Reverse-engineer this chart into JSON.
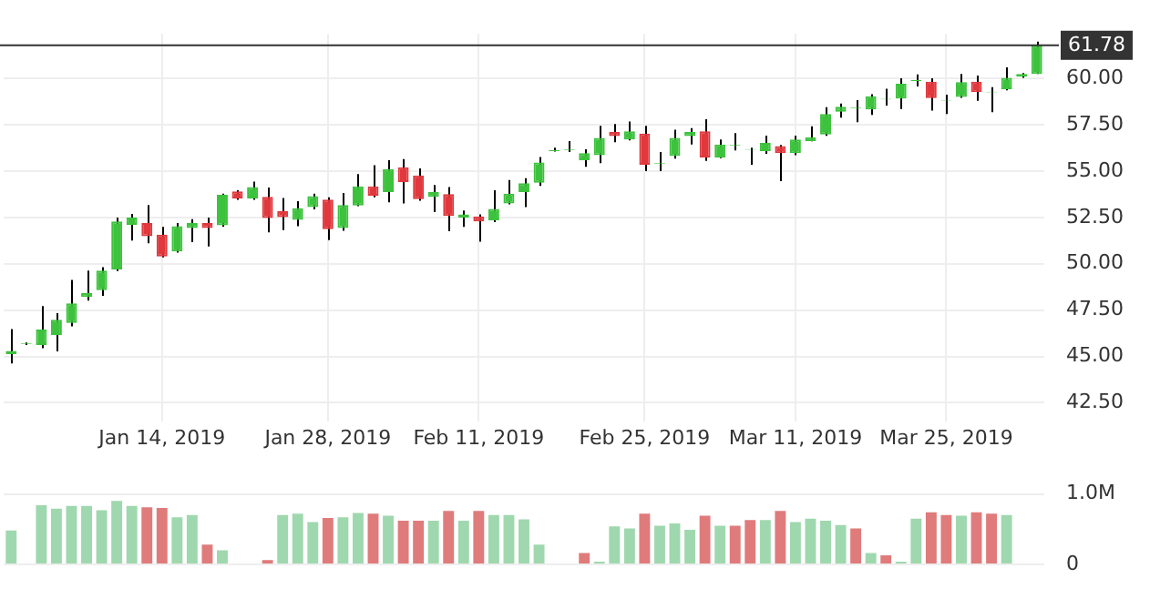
{
  "chart_data": [
    {
      "type": "candlestick",
      "categories": [
        null,
        null,
        null,
        null,
        null,
        null,
        null,
        null,
        null,
        null,
        "Jan 14, 2019",
        null,
        null,
        null,
        null,
        null,
        null,
        null,
        null,
        null,
        null,
        "Jan 28, 2019",
        null,
        null,
        null,
        null,
        null,
        null,
        null,
        null,
        null,
        "Feb 11, 2019",
        null,
        null,
        null,
        null,
        null,
        null,
        null,
        null,
        null,
        null,
        "Feb 25, 2019",
        null,
        null,
        null,
        null,
        null,
        null,
        null,
        null,
        null,
        "Mar 11, 2019",
        null,
        null,
        null,
        null,
        null,
        null,
        null,
        null,
        null,
        "Mar 25, 2019",
        null,
        null,
        null,
        null,
        null,
        null
      ],
      "ohlc": [
        [
          45.12,
          46.48,
          44.62,
          45.3
        ],
        [
          45.68,
          45.75,
          45.62,
          45.72
        ],
        [
          45.62,
          47.71,
          45.44,
          46.45
        ],
        [
          46.15,
          47.33,
          45.27,
          46.98
        ],
        [
          46.8,
          49.13,
          46.62,
          47.86
        ],
        [
          48.21,
          49.63,
          48.01,
          48.42
        ],
        [
          48.57,
          49.81,
          48.27,
          49.63
        ],
        [
          49.69,
          52.49,
          49.6,
          52.28
        ],
        [
          52.1,
          52.69,
          51.25,
          52.49
        ],
        [
          52.19,
          53.16,
          51.1,
          51.48
        ],
        [
          51.57,
          51.99,
          50.34,
          50.39
        ],
        [
          50.66,
          52.19,
          50.6,
          52.02
        ],
        [
          51.93,
          52.4,
          51.16,
          52.19
        ],
        [
          52.19,
          52.49,
          50.93,
          51.93
        ],
        [
          52.07,
          53.78,
          52.0,
          53.72
        ],
        [
          53.9,
          53.96,
          53.45,
          53.52
        ],
        [
          53.52,
          54.43,
          53.45,
          54.14
        ],
        [
          53.61,
          54.11,
          51.69,
          52.46
        ],
        [
          52.84,
          53.55,
          51.81,
          52.52
        ],
        [
          52.37,
          53.37,
          52.02,
          52.99
        ],
        [
          53.05,
          53.78,
          52.93,
          53.64
        ],
        [
          53.46,
          53.58,
          51.28,
          51.87
        ],
        [
          51.93,
          53.81,
          51.78,
          53.16
        ],
        [
          53.14,
          54.84,
          53.1,
          54.17
        ],
        [
          54.17,
          55.32,
          53.58,
          53.67
        ],
        [
          53.87,
          55.58,
          53.31,
          55.11
        ],
        [
          55.2,
          55.64,
          53.25,
          54.4
        ],
        [
          54.76,
          55.14,
          53.4,
          53.49
        ],
        [
          53.61,
          54.25,
          52.78,
          53.87
        ],
        [
          53.75,
          54.14,
          51.75,
          52.58
        ],
        [
          52.49,
          52.87,
          51.99,
          52.66
        ],
        [
          52.55,
          52.66,
          51.19,
          52.28
        ],
        [
          52.34,
          53.96,
          52.25,
          52.96
        ],
        [
          53.25,
          54.52,
          53.2,
          53.78
        ],
        [
          53.87,
          54.61,
          53.05,
          54.34
        ],
        [
          54.37,
          55.76,
          54.2,
          55.46
        ],
        [
          56.08,
          56.26,
          56.05,
          56.14
        ],
        [
          56.12,
          56.61,
          56.02,
          56.16
        ],
        [
          55.58,
          56.17,
          55.23,
          55.96
        ],
        [
          55.85,
          57.44,
          55.43,
          56.79
        ],
        [
          57.11,
          57.53,
          56.55,
          56.88
        ],
        [
          56.7,
          57.67,
          56.65,
          57.14
        ],
        [
          57.02,
          57.44,
          54.99,
          55.34
        ],
        [
          55.38,
          56.02,
          54.99,
          55.42
        ],
        [
          55.82,
          57.23,
          55.67,
          56.79
        ],
        [
          56.88,
          57.32,
          56.43,
          57.11
        ],
        [
          57.14,
          57.79,
          55.55,
          55.73
        ],
        [
          55.73,
          56.7,
          55.7,
          56.43
        ],
        [
          56.38,
          57.05,
          56.11,
          56.42
        ],
        [
          56.15,
          56.26,
          55.34,
          56.19
        ],
        [
          56.08,
          56.91,
          55.93,
          56.52
        ],
        [
          56.35,
          56.41,
          54.46,
          55.96
        ],
        [
          55.96,
          56.91,
          55.85,
          56.7
        ],
        [
          56.61,
          57.41,
          56.6,
          56.82
        ],
        [
          56.97,
          58.44,
          56.9,
          58.08
        ],
        [
          58.2,
          58.64,
          57.88,
          58.47
        ],
        [
          58.39,
          58.82,
          57.64,
          58.43
        ],
        [
          58.32,
          59.15,
          58.03,
          59.03
        ],
        [
          58.86,
          59.44,
          58.53,
          58.9
        ],
        [
          58.91,
          60.0,
          58.35,
          59.71
        ],
        [
          59.86,
          60.21,
          59.56,
          59.9
        ],
        [
          59.82,
          60.0,
          58.26,
          58.94
        ],
        [
          58.8,
          59.12,
          58.08,
          58.84
        ],
        [
          59.0,
          60.24,
          58.95,
          59.79
        ],
        [
          59.82,
          60.15,
          58.79,
          59.26
        ],
        [
          59.24,
          59.53,
          58.17,
          59.28
        ],
        [
          59.41,
          60.59,
          59.35,
          60.03
        ],
        [
          60.09,
          60.29,
          60.03,
          60.24
        ],
        [
          60.24,
          61.98,
          60.24,
          61.78
        ]
      ],
      "colors": [
        "#3cc23c",
        "#3cc23c",
        "#3cc23c",
        "#3cc23c",
        "#3cc23c",
        "#3cc23c",
        "#3cc23c",
        "#3cc23c",
        "#3cc23c",
        "#e0383d",
        "#e0383d",
        "#3cc23c",
        "#3cc23c",
        "#e0383d",
        "#3cc23c",
        "#e0383d",
        "#3cc23c",
        "#e0383d",
        "#e0383d",
        "#3cc23c",
        "#3cc23c",
        "#e0383d",
        "#3cc23c",
        "#3cc23c",
        "#e0383d",
        "#3cc23c",
        "#e0383d",
        "#e0383d",
        "#3cc23c",
        "#e0383d",
        "#3cc23c",
        "#e0383d",
        "#3cc23c",
        "#3cc23c",
        "#3cc23c",
        "#3cc23c",
        "#3cc23c",
        "#3cc23c",
        "#3cc23c",
        "#3cc23c",
        "#e0383d",
        "#3cc23c",
        "#e0383d",
        "#3cc23c",
        "#3cc23c",
        "#3cc23c",
        "#e0383d",
        "#3cc23c",
        "#3cc23c",
        "#3cc23c",
        "#3cc23c",
        "#e0383d",
        "#3cc23c",
        "#3cc23c",
        "#3cc23c",
        "#3cc23c",
        "#3cc23c",
        "#3cc23c",
        "#3cc23c",
        "#3cc23c",
        "#3cc23c",
        "#e0383d",
        "#3cc23c",
        "#3cc23c",
        "#e0383d",
        "#3cc23c",
        "#3cc23c",
        "#3cc23c",
        "#3cc23c"
      ],
      "ylim": [
        41.5,
        62.4
      ],
      "yticks": [
        {
          "value": 42.5,
          "label": "42.50"
        },
        {
          "value": 45,
          "label": "45.00"
        },
        {
          "value": 47.5,
          "label": "47.50"
        },
        {
          "value": 50,
          "label": "50.00"
        },
        {
          "value": 52.5,
          "label": "52.50"
        },
        {
          "value": 55,
          "label": "55.00"
        },
        {
          "value": 57.5,
          "label": "57.50"
        },
        {
          "value": 60,
          "label": "60.00"
        }
      ],
      "ref_lines": [
        {
          "axis": "y",
          "value": 61.78,
          "label": "61.78",
          "color": "#333333"
        }
      ],
      "grid": true,
      "legend": false
    },
    {
      "type": "bar",
      "categories": [
        null,
        null,
        null,
        null,
        null,
        null,
        null,
        null,
        null,
        null,
        null,
        null,
        null,
        null,
        null,
        null,
        null,
        null,
        null,
        null,
        null,
        null,
        null,
        null,
        null,
        null,
        null,
        null,
        null,
        null,
        null,
        null,
        null,
        null,
        null,
        null,
        null,
        null,
        null,
        null,
        null,
        null,
        null,
        null,
        null,
        null,
        null,
        null,
        null,
        null,
        null,
        null,
        null,
        null,
        null,
        null,
        null,
        null,
        null,
        null,
        null,
        null,
        null,
        null,
        null,
        null,
        null,
        null,
        null
      ],
      "values": [
        0.48,
        null,
        0.84,
        0.79,
        0.83,
        0.83,
        0.77,
        0.9,
        0.83,
        0.81,
        0.8,
        0.67,
        0.7,
        0.28,
        0.2,
        null,
        null,
        0.06,
        0.7,
        0.72,
        0.6,
        0.66,
        0.67,
        0.73,
        0.72,
        0.69,
        0.62,
        0.62,
        0.62,
        0.76,
        0.62,
        0.76,
        0.7,
        0.7,
        0.64,
        0.28,
        null,
        null,
        0.16,
        0.04,
        0.54,
        0.51,
        0.72,
        0.55,
        0.58,
        0.49,
        0.69,
        0.55,
        0.55,
        0.63,
        0.63,
        0.76,
        0.6,
        0.65,
        0.62,
        0.56,
        0.51,
        0.16,
        0.13,
        0.04,
        0.65,
        0.74,
        0.7,
        0.69,
        0.74,
        0.72,
        0.7,
        null,
        null
      ],
      "colors": [
        "#9fd8ae",
        "#9fd8ae",
        "#9fd8ae",
        "#9fd8ae",
        "#9fd8ae",
        "#9fd8ae",
        "#9fd8ae",
        "#9fd8ae",
        "#9fd8ae",
        "#e07b7b",
        "#e07b7b",
        "#9fd8ae",
        "#9fd8ae",
        "#e07b7b",
        "#9fd8ae",
        "#9fd8ae",
        "#9fd8ae",
        "#e07b7b",
        "#9fd8ae",
        "#9fd8ae",
        "#9fd8ae",
        "#e07b7b",
        "#9fd8ae",
        "#9fd8ae",
        "#e07b7b",
        "#9fd8ae",
        "#e07b7b",
        "#e07b7b",
        "#9fd8ae",
        "#e07b7b",
        "#9fd8ae",
        "#e07b7b",
        "#9fd8ae",
        "#9fd8ae",
        "#9fd8ae",
        "#9fd8ae",
        "#9fd8ae",
        "#9fd8ae",
        "#e07b7b",
        "#9fd8ae",
        "#9fd8ae",
        "#9fd8ae",
        "#e07b7b",
        "#9fd8ae",
        "#9fd8ae",
        "#9fd8ae",
        "#e07b7b",
        "#9fd8ae",
        "#e07b7b",
        "#e07b7b",
        "#9fd8ae",
        "#e07b7b",
        "#9fd8ae",
        "#9fd8ae",
        "#9fd8ae",
        "#9fd8ae",
        "#e07b7b",
        "#9fd8ae",
        "#e07b7b",
        "#9fd8ae",
        "#9fd8ae",
        "#e07b7b",
        "#e07b7b",
        "#9fd8ae",
        "#e07b7b",
        "#e07b7b",
        "#9fd8ae",
        "#9fd8ae",
        "#9fd8ae"
      ],
      "ylim": [
        0,
        1.07
      ],
      "yticks": [
        0,
        {
          "value": 1,
          "label": "1.0M"
        }
      ],
      "tick_labels": "y",
      "grid": "y",
      "legend": false
    }
  ]
}
